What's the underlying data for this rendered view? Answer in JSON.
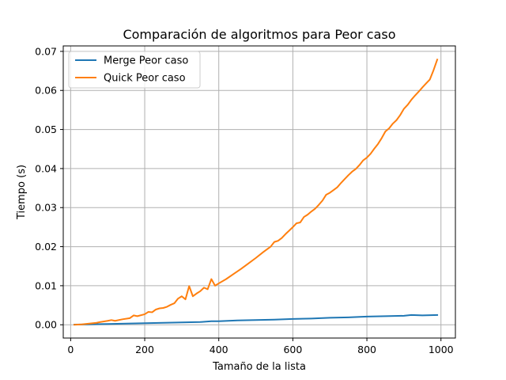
{
  "chart_data": {
    "type": "line",
    "title": "Comparación de algoritmos para Peor caso",
    "xlabel": "Tamaño de la lista",
    "ylabel": "Tiempo (s)",
    "xlim": [
      -20,
      1039
    ],
    "ylim": [
      -0.0034,
      0.0714
    ],
    "xticks": [
      0,
      200,
      400,
      600,
      800,
      1000
    ],
    "xtick_labels": [
      "0",
      "200",
      "400",
      "600",
      "800",
      "1000"
    ],
    "yticks": [
      0.0,
      0.01,
      0.02,
      0.03,
      0.04,
      0.05,
      0.06,
      0.07
    ],
    "ytick_labels": [
      "0.00",
      "0.01",
      "0.02",
      "0.03",
      "0.04",
      "0.05",
      "0.06",
      "0.07"
    ],
    "grid": true,
    "legend_position": "upper-left",
    "series": [
      {
        "name": "Merge Peor caso",
        "color": "#1f77b4",
        "x": [
          10,
          50,
          100,
          150,
          200,
          250,
          300,
          350,
          380,
          400,
          450,
          500,
          550,
          600,
          650,
          700,
          750,
          800,
          850,
          900,
          920,
          950,
          990
        ],
        "y": [
          5e-05,
          0.0001,
          0.0002,
          0.0003,
          0.0004,
          0.0005,
          0.0006,
          0.0007,
          0.0009,
          0.0009,
          0.0011,
          0.0012,
          0.0013,
          0.0015,
          0.0016,
          0.0018,
          0.0019,
          0.0021,
          0.0022,
          0.0023,
          0.0025,
          0.0024,
          0.0025
        ]
      },
      {
        "name": "Quick Peor caso",
        "color": "#ff7f0e",
        "x": [
          10,
          30,
          50,
          70,
          80,
          100,
          110,
          120,
          140,
          160,
          170,
          180,
          200,
          210,
          220,
          230,
          240,
          250,
          260,
          270,
          280,
          290,
          300,
          310,
          320,
          330,
          340,
          350,
          360,
          370,
          380,
          390,
          400,
          420,
          440,
          460,
          480,
          500,
          520,
          540,
          550,
          560,
          570,
          580,
          590,
          600,
          610,
          620,
          630,
          640,
          650,
          660,
          670,
          680,
          690,
          700,
          710,
          720,
          730,
          740,
          750,
          760,
          770,
          780,
          790,
          800,
          810,
          820,
          830,
          840,
          850,
          860,
          870,
          880,
          890,
          900,
          910,
          920,
          930,
          940,
          950,
          960,
          970,
          980,
          990
        ],
        "y": [
          0.0,
          0.0001,
          0.0003,
          0.0005,
          0.0007,
          0.001,
          0.0012,
          0.001,
          0.0014,
          0.0017,
          0.0024,
          0.0022,
          0.0027,
          0.0033,
          0.0032,
          0.0039,
          0.0042,
          0.0043,
          0.0046,
          0.0051,
          0.0055,
          0.0067,
          0.0073,
          0.0065,
          0.0099,
          0.0073,
          0.008,
          0.0086,
          0.0095,
          0.0091,
          0.0117,
          0.01,
          0.0106,
          0.0117,
          0.013,
          0.0143,
          0.0157,
          0.0171,
          0.0186,
          0.02,
          0.0212,
          0.0215,
          0.0222,
          0.0232,
          0.0241,
          0.025,
          0.026,
          0.0262,
          0.0276,
          0.0282,
          0.029,
          0.0297,
          0.0307,
          0.0318,
          0.0333,
          0.0338,
          0.0345,
          0.0352,
          0.0363,
          0.0373,
          0.0383,
          0.0392,
          0.0399,
          0.0409,
          0.0421,
          0.0428,
          0.0438,
          0.0451,
          0.0463,
          0.0478,
          0.0495,
          0.0503,
          0.0515,
          0.0524,
          0.0537,
          0.0553,
          0.0563,
          0.0576,
          0.0587,
          0.0597,
          0.0608,
          0.0618,
          0.0628,
          0.0652,
          0.0679
        ]
      }
    ]
  }
}
